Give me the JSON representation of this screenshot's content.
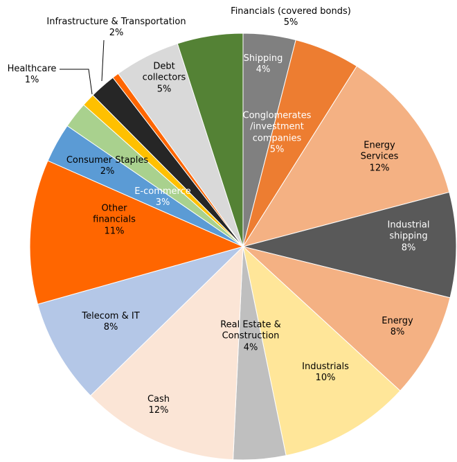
{
  "chart_data": {
    "type": "pie",
    "categories": [
      "Shipping",
      "Conglomerates /investment companies",
      "Energy Services",
      "Industrial shipping",
      "Energy",
      "Industrials",
      "Real Estate & Construction",
      "Cash",
      "Telecom & IT",
      "Other financials",
      "E-commerce",
      "Consumer Staples",
      "Healthcare",
      "Infrastructure & Transportation",
      null,
      "Debt collectors",
      "Financials (covered bonds)"
    ],
    "values": [
      4,
      5,
      12,
      8,
      8,
      10,
      4,
      12,
      8,
      11,
      3,
      2,
      1,
      2,
      0.5,
      5,
      5
    ],
    "value_labels": [
      "4%",
      "5%",
      "12%",
      "8%",
      "8%",
      "10%",
      "4%",
      "12%",
      "8%",
      "11%",
      "3%",
      "2%",
      "1%",
      "2%",
      null,
      "5%",
      "5%"
    ],
    "colors": [
      "#808080",
      "#ed7d31",
      "#f4b183",
      "#595959",
      "#f4b183",
      "#ffe699",
      "#bfbfbf",
      "#fbe5d6",
      "#b4c7e7",
      "#ff6600",
      "#5b9bd5",
      "#a9d18e",
      "#ffc000",
      "#262626",
      "#ff6600",
      "#d9d9d9",
      "#548235"
    ]
  }
}
